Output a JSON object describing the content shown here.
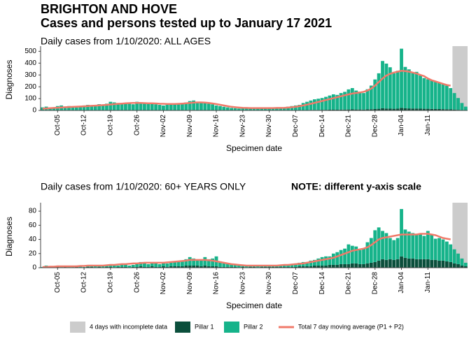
{
  "title": [
    "BRIGHTON AND HOVE",
    "Cases and persons tested up to January 17 2021"
  ],
  "incomplete_label": "4 days with incomplete data",
  "chart_data": [
    {
      "type": "bar",
      "stacked": true,
      "title": "Daily cases from 1/10/2020: ALL AGES",
      "xlabel": "Specimen date",
      "ylabel": "Diagnoses",
      "incomplete_days": 4,
      "incomplete_color": "#cccccc",
      "categories": [
        null,
        null,
        null,
        null,
        "Oct-05",
        null,
        null,
        null,
        null,
        null,
        null,
        "Oct-12",
        null,
        null,
        null,
        null,
        null,
        null,
        "Oct-19",
        null,
        null,
        null,
        null,
        null,
        null,
        "Oct-26",
        null,
        null,
        null,
        null,
        null,
        null,
        "Nov-02",
        null,
        null,
        null,
        null,
        null,
        null,
        "Nov-09",
        null,
        null,
        null,
        null,
        null,
        null,
        "Nov-16",
        null,
        null,
        null,
        null,
        null,
        null,
        "Nov-23",
        null,
        null,
        null,
        null,
        null,
        null,
        "Nov-30",
        null,
        null,
        null,
        null,
        null,
        null,
        "Dec-07",
        null,
        null,
        null,
        null,
        null,
        null,
        "Dec-14",
        null,
        null,
        null,
        null,
        null,
        null,
        "Dec-21",
        null,
        null,
        null,
        null,
        null,
        null,
        "Dec-28",
        null,
        null,
        null,
        null,
        null,
        null,
        "Jan-04",
        null,
        null,
        null,
        null,
        null,
        null,
        "Jan-11",
        null,
        null,
        null,
        null,
        null,
        null,
        null,
        null,
        null,
        null
      ],
      "ylim": [
        0,
        520
      ],
      "yticks": [
        0,
        100,
        200,
        300,
        400,
        500
      ],
      "series": [
        {
          "name": "Pillar 1",
          "color": "#0b4f3c",
          "values": [
            1,
            2,
            1,
            1,
            2,
            2,
            1,
            2,
            2,
            1,
            1,
            2,
            2,
            2,
            2,
            3,
            2,
            2,
            3,
            3,
            3,
            2,
            3,
            3,
            2,
            3,
            3,
            2,
            2,
            3,
            2,
            2,
            2,
            2,
            3,
            3,
            2,
            3,
            3,
            4,
            4,
            3,
            3,
            3,
            2,
            2,
            2,
            2,
            1,
            1,
            1,
            1,
            1,
            1,
            1,
            1,
            1,
            1,
            1,
            1,
            1,
            1,
            1,
            1,
            1,
            2,
            2,
            2,
            2,
            3,
            3,
            4,
            4,
            4,
            5,
            5,
            6,
            6,
            6,
            7,
            7,
            8,
            9,
            8,
            8,
            7,
            9,
            10,
            12,
            14,
            18,
            16,
            15,
            14,
            15,
            22,
            18,
            17,
            16,
            16,
            15,
            14,
            14,
            13,
            12,
            12,
            11,
            10,
            9,
            7,
            5,
            3,
            2
          ]
        },
        {
          "name": "Pillar 2",
          "color": "#16b38a",
          "values": [
            25,
            30,
            20,
            15,
            35,
            40,
            30,
            35,
            30,
            25,
            30,
            40,
            45,
            40,
            45,
            50,
            40,
            55,
            70,
            65,
            60,
            55,
            60,
            65,
            50,
            70,
            65,
            60,
            55,
            60,
            50,
            45,
            40,
            45,
            50,
            55,
            50,
            60,
            65,
            75,
            80,
            70,
            65,
            60,
            55,
            50,
            40,
            35,
            30,
            25,
            20,
            18,
            15,
            20,
            18,
            20,
            22,
            18,
            20,
            15,
            18,
            20,
            22,
            18,
            25,
            30,
            35,
            40,
            45,
            60,
            70,
            80,
            90,
            95,
            100,
            110,
            120,
            130,
            125,
            140,
            150,
            170,
            180,
            160,
            150,
            140,
            170,
            200,
            250,
            300,
            400,
            380,
            350,
            300,
            320,
            500,
            350,
            330,
            300,
            310,
            280,
            260,
            250,
            240,
            230,
            220,
            210,
            200,
            180,
            140,
            100,
            60,
            30
          ]
        },
        {
          "name": "Total 7 day moving average (P1 + P2)",
          "type": "line",
          "color": "#f07a6a",
          "values": [
            15,
            17,
            19,
            21,
            23,
            25,
            27,
            29,
            30,
            32,
            33,
            35,
            37,
            39,
            41,
            43,
            45,
            47,
            50,
            53,
            56,
            58,
            60,
            62,
            63,
            64,
            63,
            62,
            61,
            60,
            59,
            57,
            56,
            55,
            55,
            55,
            56,
            58,
            60,
            63,
            66,
            68,
            68,
            66,
            63,
            59,
            54,
            48,
            42,
            36,
            31,
            27,
            24,
            22,
            21,
            20,
            20,
            20,
            20,
            20,
            20,
            20,
            21,
            21,
            22,
            24,
            27,
            31,
            36,
            42,
            49,
            56,
            64,
            72,
            80,
            88,
            96,
            104,
            112,
            120,
            128,
            136,
            143,
            148,
            152,
            158,
            168,
            185,
            210,
            240,
            270,
            295,
            310,
            320,
            328,
            335,
            332,
            328,
            320,
            312,
            300,
            290,
            270,
            255,
            245,
            235,
            225,
            215,
            210,
            null,
            null,
            null,
            null
          ]
        }
      ]
    },
    {
      "type": "bar",
      "stacked": true,
      "title": "Daily cases from 1/10/2020: 60+ YEARS ONLY",
      "note": "NOTE: different y-axis scale",
      "xlabel": "Specimen date",
      "ylabel": "Diagnoses",
      "incomplete_days": 4,
      "incomplete_color": "#cccccc",
      "categories": [
        null,
        null,
        null,
        null,
        "Oct-05",
        null,
        null,
        null,
        null,
        null,
        null,
        "Oct-12",
        null,
        null,
        null,
        null,
        null,
        null,
        "Oct-19",
        null,
        null,
        null,
        null,
        null,
        null,
        "Oct-26",
        null,
        null,
        null,
        null,
        null,
        null,
        "Nov-02",
        null,
        null,
        null,
        null,
        null,
        null,
        "Nov-09",
        null,
        null,
        null,
        null,
        null,
        null,
        "Nov-16",
        null,
        null,
        null,
        null,
        null,
        null,
        "Nov-23",
        null,
        null,
        null,
        null,
        null,
        null,
        "Nov-30",
        null,
        null,
        null,
        null,
        null,
        null,
        "Dec-07",
        null,
        null,
        null,
        null,
        null,
        null,
        "Dec-14",
        null,
        null,
        null,
        null,
        null,
        null,
        "Dec-21",
        null,
        null,
        null,
        null,
        null,
        null,
        "Dec-28",
        null,
        null,
        null,
        null,
        null,
        null,
        "Jan-04",
        null,
        null,
        null,
        null,
        null,
        null,
        "Jan-11",
        null,
        null,
        null,
        null,
        null,
        null,
        null,
        null,
        null,
        null
      ],
      "ylim": [
        0,
        88
      ],
      "yticks": [
        0,
        20,
        40,
        60,
        80
      ],
      "series": [
        {
          "name": "Pillar 1",
          "color": "#0b4f3c",
          "values": [
            0,
            1,
            0,
            0,
            1,
            0,
            1,
            0,
            0,
            1,
            0,
            0,
            1,
            1,
            0,
            1,
            0,
            1,
            1,
            0,
            1,
            1,
            1,
            0,
            1,
            1,
            2,
            1,
            1,
            2,
            1,
            1,
            2,
            1,
            2,
            2,
            2,
            2,
            3,
            3,
            3,
            3,
            2,
            3,
            2,
            2,
            2,
            1,
            1,
            1,
            1,
            1,
            0,
            1,
            0,
            1,
            1,
            0,
            1,
            1,
            1,
            1,
            1,
            1,
            1,
            1,
            1,
            1,
            2,
            2,
            2,
            2,
            3,
            3,
            3,
            3,
            4,
            4,
            4,
            5,
            5,
            5,
            6,
            6,
            5,
            5,
            6,
            7,
            8,
            10,
            12,
            11,
            12,
            11,
            12,
            16,
            14,
            13,
            13,
            12,
            12,
            12,
            12,
            11,
            11,
            10,
            10,
            9,
            8,
            6,
            5,
            3,
            2
          ]
        },
        {
          "name": "Pillar 2",
          "color": "#16b38a",
          "values": [
            1,
            2,
            1,
            1,
            2,
            1,
            1,
            2,
            1,
            2,
            2,
            1,
            2,
            3,
            2,
            2,
            3,
            2,
            4,
            3,
            2,
            3,
            4,
            3,
            3,
            4,
            6,
            5,
            4,
            4,
            5,
            4,
            5,
            5,
            6,
            7,
            6,
            8,
            9,
            12,
            10,
            8,
            9,
            12,
            10,
            11,
            14,
            8,
            6,
            5,
            4,
            3,
            3,
            2,
            3,
            2,
            2,
            3,
            2,
            2,
            2,
            2,
            2,
            3,
            3,
            3,
            4,
            5,
            5,
            6,
            6,
            8,
            8,
            10,
            12,
            13,
            12,
            16,
            18,
            20,
            22,
            28,
            25,
            24,
            20,
            22,
            30,
            35,
            45,
            47,
            40,
            38,
            30,
            28,
            30,
            67,
            40,
            38,
            36,
            36,
            35,
            33,
            40,
            36,
            30,
            32,
            30,
            28,
            25,
            20,
            15,
            10,
            5
          ]
        },
        {
          "name": "Total 7 day moving average (P1 + P2)",
          "type": "line",
          "color": "#f07a6a",
          "values": [
            1,
            1,
            1.5,
            1.5,
            2,
            2,
            2,
            2,
            2,
            2,
            2.5,
            2.5,
            3,
            3,
            3,
            3,
            3,
            3.5,
            4,
            4,
            4.5,
            5,
            5,
            5.5,
            6,
            6,
            6.5,
            7,
            7,
            7,
            7,
            7,
            7,
            7.5,
            8,
            8.5,
            9,
            9.5,
            10,
            11,
            11,
            11,
            11,
            11,
            10.5,
            10,
            9,
            8,
            7,
            6,
            5,
            4.5,
            4,
            3.5,
            3,
            3,
            3,
            3,
            3,
            3,
            3,
            3,
            3,
            3.5,
            4,
            4,
            4.5,
            5,
            5.5,
            6,
            7,
            8,
            9,
            10,
            11,
            12,
            13,
            14,
            16,
            18,
            20,
            22,
            24,
            25,
            26,
            27,
            29,
            32,
            36,
            40,
            42,
            43,
            44,
            45,
            46,
            47,
            47,
            47,
            47,
            47,
            48,
            48,
            48,
            47,
            46,
            44,
            42,
            41,
            40,
            null,
            null,
            null,
            null
          ]
        }
      ]
    }
  ]
}
